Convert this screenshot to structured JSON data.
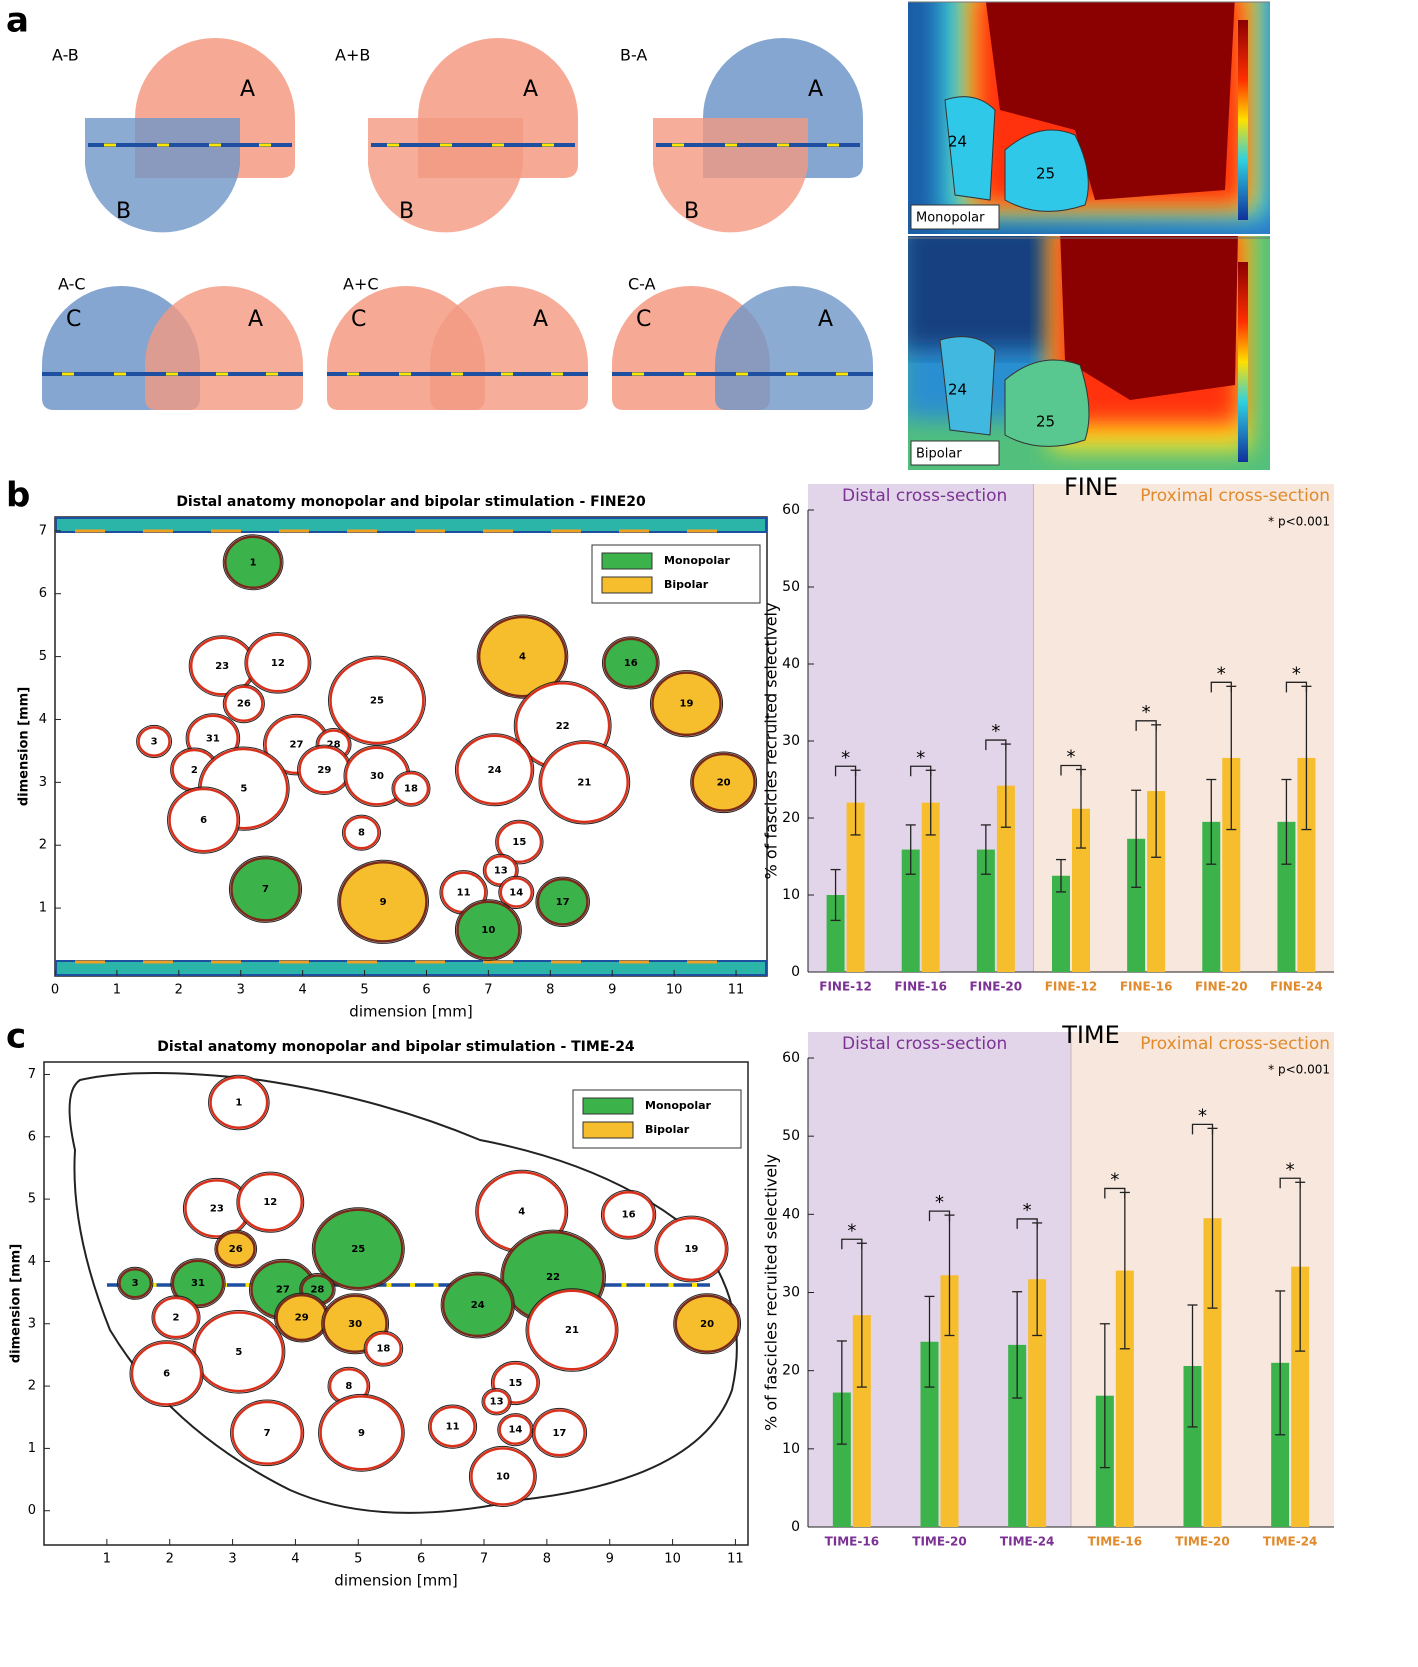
{
  "panel_labels": [
    "a",
    "b",
    "c"
  ],
  "panel_a": {
    "venn": [
      {
        "title": "A-B",
        "circles": [
          {
            "label": "A",
            "color": "#f49a82"
          },
          {
            "label": "B",
            "color": "#6f96c8"
          }
        ]
      },
      {
        "title": "A+B",
        "circles": [
          {
            "label": "A",
            "color": "#f49a82"
          },
          {
            "label": "B",
            "color": "#f49a82"
          }
        ]
      },
      {
        "title": "B-A",
        "circles": [
          {
            "label": "A",
            "color": "#6f96c8"
          },
          {
            "label": "B",
            "color": "#f49a82"
          }
        ]
      },
      {
        "title": "A-C",
        "circles": [
          {
            "label": "C",
            "color": "#6f96c8"
          },
          {
            "label": "A",
            "color": "#f49a82"
          }
        ]
      },
      {
        "title": "A+C",
        "circles": [
          {
            "label": "C",
            "color": "#f49a82"
          },
          {
            "label": "A",
            "color": "#f49a82"
          }
        ]
      },
      {
        "title": "C-A",
        "circles": [
          {
            "label": "C",
            "color": "#f49a82"
          },
          {
            "label": "A",
            "color": "#6f96c8"
          }
        ]
      }
    ],
    "heatmaps": [
      {
        "label": "Monopolar",
        "fascicles": [
          "24",
          "25"
        ]
      },
      {
        "label": "Bipolar",
        "fascicles": [
          "24",
          "25"
        ]
      }
    ]
  },
  "chart_data": [
    {
      "type": "map",
      "title": "Distal anatomy monopolar and bipolar stimulation - FINE20",
      "x_label": "dimension [mm]",
      "y_label": "dimension [mm]",
      "xlim": [
        0,
        11.5
      ],
      "ylim": [
        -0.08,
        7.22
      ],
      "xticks": [
        0,
        1,
        2,
        3,
        4,
        5,
        6,
        7,
        8,
        9,
        10,
        11
      ],
      "yticks": [
        1,
        2,
        3,
        4,
        5,
        6,
        7
      ],
      "legend": [
        {
          "name": "Monopolar",
          "color": "#3bb34a"
        },
        {
          "name": "Bipolar",
          "color": "#f6bd2c"
        }
      ],
      "fascicles": [
        {
          "label": "1",
          "x": 3.2,
          "y": 6.5,
          "size": 0.9,
          "color": "#3bb34a"
        },
        {
          "label": "23",
          "x": 2.7,
          "y": 4.85,
          "size": 1.0,
          "color": "#ffffff"
        },
        {
          "label": "12",
          "x": 3.6,
          "y": 4.9,
          "size": 1.0,
          "color": "#ffffff"
        },
        {
          "label": "26",
          "x": 3.05,
          "y": 4.25,
          "size": 0.6,
          "color": "#ffffff"
        },
        {
          "label": "25",
          "x": 5.2,
          "y": 4.3,
          "size": 1.5,
          "color": "#ffffff"
        },
        {
          "label": "31",
          "x": 2.55,
          "y": 3.7,
          "size": 0.8,
          "color": "#ffffff"
        },
        {
          "label": "3",
          "x": 1.6,
          "y": 3.65,
          "size": 0.5,
          "color": "#ffffff"
        },
        {
          "label": "27",
          "x": 3.9,
          "y": 3.6,
          "size": 1.0,
          "color": "#ffffff"
        },
        {
          "label": "28",
          "x": 4.5,
          "y": 3.6,
          "size": 0.5,
          "color": "#ffffff"
        },
        {
          "label": "2",
          "x": 2.25,
          "y": 3.2,
          "size": 0.7,
          "color": "#ffffff"
        },
        {
          "label": "29",
          "x": 4.35,
          "y": 3.2,
          "size": 0.8,
          "color": "#ffffff"
        },
        {
          "label": "30",
          "x": 5.2,
          "y": 3.1,
          "size": 1.0,
          "color": "#ffffff"
        },
        {
          "label": "18",
          "x": 5.75,
          "y": 2.9,
          "size": 0.55,
          "color": "#ffffff"
        },
        {
          "label": "5",
          "x": 3.05,
          "y": 2.9,
          "size": 1.4,
          "color": "#ffffff"
        },
        {
          "label": "6",
          "x": 2.4,
          "y": 2.4,
          "size": 1.1,
          "color": "#ffffff"
        },
        {
          "label": "8",
          "x": 4.95,
          "y": 2.2,
          "size": 0.55,
          "color": "#ffffff"
        },
        {
          "label": "7",
          "x": 3.4,
          "y": 1.3,
          "size": 1.1,
          "color": "#3bb34a"
        },
        {
          "label": "9",
          "x": 5.3,
          "y": 1.1,
          "size": 1.4,
          "color": "#f6bd2c"
        },
        {
          "label": "4",
          "x": 7.55,
          "y": 5.0,
          "size": 1.4,
          "color": "#f6bd2c"
        },
        {
          "label": "16",
          "x": 9.3,
          "y": 4.9,
          "size": 0.85,
          "color": "#3bb34a"
        },
        {
          "label": "19",
          "x": 10.2,
          "y": 4.25,
          "size": 1.1,
          "color": "#f6bd2c"
        },
        {
          "label": "22",
          "x": 8.2,
          "y": 3.9,
          "size": 1.5,
          "color": "#ffffff"
        },
        {
          "label": "24",
          "x": 7.1,
          "y": 3.2,
          "size": 1.2,
          "color": "#ffffff"
        },
        {
          "label": "21",
          "x": 8.55,
          "y": 3.0,
          "size": 1.4,
          "color": "#ffffff"
        },
        {
          "label": "20",
          "x": 10.8,
          "y": 3.0,
          "size": 1.0,
          "color": "#f6bd2c"
        },
        {
          "label": "15",
          "x": 7.5,
          "y": 2.05,
          "size": 0.7,
          "color": "#ffffff"
        },
        {
          "label": "13",
          "x": 7.2,
          "y": 1.6,
          "size": 0.5,
          "color": "#ffffff"
        },
        {
          "label": "11",
          "x": 6.6,
          "y": 1.25,
          "size": 0.7,
          "color": "#ffffff"
        },
        {
          "label": "14",
          "x": 7.45,
          "y": 1.25,
          "size": 0.5,
          "color": "#ffffff"
        },
        {
          "label": "17",
          "x": 8.2,
          "y": 1.1,
          "size": 0.8,
          "color": "#3bb34a"
        },
        {
          "label": "10",
          "x": 7.0,
          "y": 0.65,
          "size": 1.0,
          "color": "#3bb34a"
        }
      ]
    },
    {
      "type": "bar",
      "title": "FINE",
      "y_label": "% of fascicles recruited selectively",
      "annotation": "* p<0.001",
      "significance_label": "*",
      "ylim": [
        0,
        60
      ],
      "yticks": [
        0,
        10,
        20,
        30,
        40,
        50,
        60
      ],
      "category_groups": [
        {
          "name": "Distal cross-section",
          "color": "#7b3294",
          "background": "#e3d5e9",
          "categories": [
            "FINE-12",
            "FINE-16",
            "FINE-20"
          ]
        },
        {
          "name": "Proximal cross-section",
          "color": "#e08a2c",
          "background": "#f8e7dc",
          "categories": [
            "FINE-12",
            "FINE-16",
            "FINE-20",
            "FINE-24"
          ]
        }
      ],
      "series": [
        {
          "name": "Monopolar",
          "color": "#3bb34a",
          "values": [
            10,
            15.9,
            15.9,
            12.5,
            17.3,
            19.5,
            19.5
          ],
          "errors": [
            3.3,
            3.2,
            3.2,
            2.1,
            6.3,
            5.5,
            5.5
          ]
        },
        {
          "name": "Bipolar",
          "color": "#f6bd2c",
          "values": [
            22,
            22,
            24.2,
            21.2,
            23.5,
            27.8,
            27.8
          ],
          "errors": [
            4.2,
            4.2,
            5.4,
            5.1,
            8.6,
            9.3,
            9.3
          ]
        }
      ]
    },
    {
      "type": "map",
      "title": "Distal anatomy monopolar and bipolar stimulation - TIME-24",
      "x_label": "dimension [mm]",
      "y_label": "dimension [mm]",
      "xlim": [
        0,
        11.2
      ],
      "ylim": [
        -0.55,
        7.2
      ],
      "xticks": [
        1,
        2,
        3,
        4,
        5,
        6,
        7,
        8,
        9,
        10,
        11
      ],
      "yticks": [
        0,
        1,
        2,
        3,
        4,
        5,
        6,
        7
      ],
      "legend": [
        {
          "name": "Monopolar",
          "color": "#3bb34a"
        },
        {
          "name": "Bipolar",
          "color": "#f6bd2c"
        }
      ],
      "fascicles": [
        {
          "label": "1",
          "x": 3.1,
          "y": 6.55,
          "size": 0.9,
          "color": "#ffffff"
        },
        {
          "label": "23",
          "x": 2.75,
          "y": 4.85,
          "size": 1.0,
          "color": "#ffffff"
        },
        {
          "label": "12",
          "x": 3.6,
          "y": 4.95,
          "size": 1.0,
          "color": "#ffffff"
        },
        {
          "label": "26",
          "x": 3.05,
          "y": 4.2,
          "size": 0.6,
          "color": "#f6bd2c"
        },
        {
          "label": "25",
          "x": 5.0,
          "y": 4.2,
          "size": 1.4,
          "color": "#3bb34a"
        },
        {
          "label": "3",
          "x": 1.45,
          "y": 3.65,
          "size": 0.5,
          "color": "#3bb34a"
        },
        {
          "label": "31",
          "x": 2.45,
          "y": 3.65,
          "size": 0.8,
          "color": "#3bb34a"
        },
        {
          "label": "27",
          "x": 3.8,
          "y": 3.55,
          "size": 1.0,
          "color": "#3bb34a"
        },
        {
          "label": "28",
          "x": 4.35,
          "y": 3.55,
          "size": 0.5,
          "color": "#3bb34a"
        },
        {
          "label": "2",
          "x": 2.1,
          "y": 3.1,
          "size": 0.7,
          "color": "#ffffff"
        },
        {
          "label": "29",
          "x": 4.1,
          "y": 3.1,
          "size": 0.8,
          "color": "#f6bd2c"
        },
        {
          "label": "30",
          "x": 4.95,
          "y": 3.0,
          "size": 1.0,
          "color": "#f6bd2c"
        },
        {
          "label": "18",
          "x": 5.4,
          "y": 2.6,
          "size": 0.55,
          "color": "#ffffff"
        },
        {
          "label": "5",
          "x": 3.1,
          "y": 2.55,
          "size": 1.4,
          "color": "#ffffff"
        },
        {
          "label": "6",
          "x": 1.95,
          "y": 2.2,
          "size": 1.1,
          "color": "#ffffff"
        },
        {
          "label": "8",
          "x": 4.85,
          "y": 2.0,
          "size": 0.6,
          "color": "#ffffff"
        },
        {
          "label": "7",
          "x": 3.55,
          "y": 1.25,
          "size": 1.1,
          "color": "#ffffff"
        },
        {
          "label": "9",
          "x": 5.05,
          "y": 1.25,
          "size": 1.3,
          "color": "#ffffff"
        },
        {
          "label": "4",
          "x": 7.6,
          "y": 4.8,
          "size": 1.4,
          "color": "#ffffff"
        },
        {
          "label": "16",
          "x": 9.3,
          "y": 4.75,
          "size": 0.8,
          "color": "#ffffff"
        },
        {
          "label": "19",
          "x": 10.3,
          "y": 4.2,
          "size": 1.1,
          "color": "#ffffff"
        },
        {
          "label": "22",
          "x": 8.1,
          "y": 3.75,
          "size": 1.6,
          "color": "#3bb34a"
        },
        {
          "label": "24",
          "x": 6.9,
          "y": 3.3,
          "size": 1.1,
          "color": "#3bb34a"
        },
        {
          "label": "21",
          "x": 8.4,
          "y": 2.9,
          "size": 1.4,
          "color": "#ffffff"
        },
        {
          "label": "20",
          "x": 10.55,
          "y": 3.0,
          "size": 1.0,
          "color": "#f6bd2c"
        },
        {
          "label": "15",
          "x": 7.5,
          "y": 2.05,
          "size": 0.7,
          "color": "#ffffff"
        },
        {
          "label": "13",
          "x": 7.2,
          "y": 1.75,
          "size": 0.4,
          "color": "#ffffff"
        },
        {
          "label": "11",
          "x": 6.5,
          "y": 1.35,
          "size": 0.7,
          "color": "#ffffff"
        },
        {
          "label": "14",
          "x": 7.5,
          "y": 1.3,
          "size": 0.5,
          "color": "#ffffff"
        },
        {
          "label": "17",
          "x": 8.2,
          "y": 1.25,
          "size": 0.8,
          "color": "#ffffff"
        },
        {
          "label": "10",
          "x": 7.3,
          "y": 0.55,
          "size": 1.0,
          "color": "#ffffff"
        }
      ]
    },
    {
      "type": "bar",
      "title": "TIME",
      "y_label": "% of fascicles recruited selectively",
      "annotation": "* p<0.001",
      "significance_label": "*",
      "ylim": [
        0,
        60
      ],
      "yticks": [
        0,
        10,
        20,
        30,
        40,
        50,
        60
      ],
      "category_groups": [
        {
          "name": "Distal cross-section",
          "color": "#7b3294",
          "background": "#e3d5e9",
          "categories": [
            "TIME-16",
            "TIME-20",
            "TIME-24"
          ]
        },
        {
          "name": "Proximal cross-section",
          "color": "#e08a2c",
          "background": "#f8e7dc",
          "categories": [
            "TIME-16",
            "TIME-20",
            "TIME-24"
          ]
        }
      ],
      "series": [
        {
          "name": "Monopolar",
          "color": "#3bb34a",
          "values": [
            17.2,
            23.7,
            23.3,
            16.8,
            20.6,
            21
          ],
          "errors": [
            6.6,
            5.8,
            6.8,
            9.2,
            7.8,
            9.2
          ]
        },
        {
          "name": "Bipolar",
          "color": "#f6bd2c",
          "values": [
            27.1,
            32.2,
            31.7,
            32.8,
            39.5,
            33.3
          ],
          "errors": [
            9.2,
            7.7,
            7.2,
            10,
            11.5,
            10.8
          ]
        }
      ]
    }
  ]
}
